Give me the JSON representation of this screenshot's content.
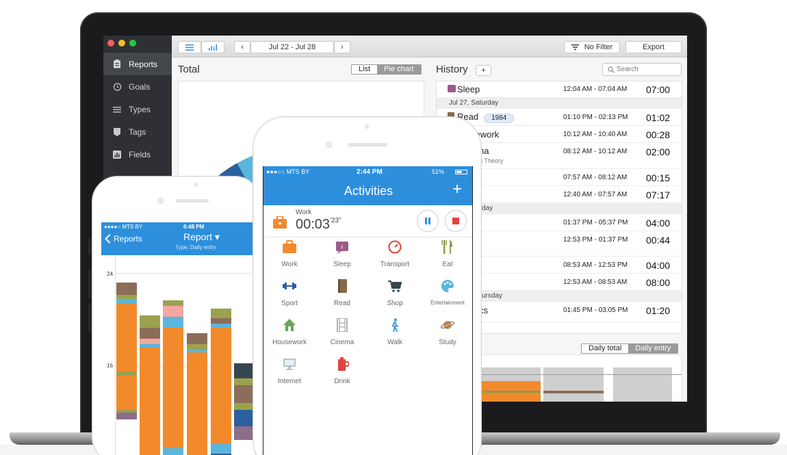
{
  "desktop": {
    "sidebar": {
      "items": [
        {
          "label": "Reports",
          "icon": "clipboard-icon"
        },
        {
          "label": "Goals",
          "icon": "alarm-clock-icon"
        },
        {
          "label": "Types",
          "icon": "list-icon"
        },
        {
          "label": "Tags",
          "icon": "tag-icon"
        },
        {
          "label": "Fields",
          "icon": "bar-chart-icon"
        }
      ],
      "active": "Reports"
    },
    "toolbar": {
      "date_range": "Jul 22 - Jul 28",
      "filter_label": "No Filter",
      "export_label": "Export"
    },
    "total": {
      "title": "Total",
      "view_list": "List",
      "view_pie": "Pie chart"
    },
    "history": {
      "title": "History",
      "add_label": "+",
      "search_placeholder": "Search",
      "rows": [
        {
          "kind": "entry",
          "name": "Sleep",
          "range": "12:04 AM - 07:04 AM",
          "duration": "07:00",
          "color": "#9b5a8a"
        },
        {
          "kind": "date",
          "label": "Jul 27, Saturday"
        },
        {
          "kind": "entry",
          "name": "Read",
          "badge": "1984",
          "range": "01:10 PM - 02:13 PM",
          "duration": "01:02",
          "color": "#8a6a4a"
        },
        {
          "kind": "entry",
          "name": "sework",
          "range": "10:12 AM - 10:40 AM",
          "duration": "00:28"
        },
        {
          "kind": "entry",
          "name": "na",
          "sub": "g Theory",
          "range": "08:12 AM - 10:12 AM",
          "duration": "02:00"
        },
        {
          "kind": "entry",
          "name": "",
          "range": "07:57 AM - 08:12 AM",
          "duration": "00:15"
        },
        {
          "kind": "entry",
          "name": "",
          "range": "12:40 AM - 07:57 AM",
          "duration": "07:17"
        },
        {
          "kind": "date",
          "label": "day"
        },
        {
          "kind": "entry",
          "name": "",
          "range": "01:37 PM - 05:37 PM",
          "duration": "04:00"
        },
        {
          "kind": "entry",
          "name": "",
          "range": "12:53 PM - 01:37 PM",
          "duration": "00:44"
        },
        {
          "kind": "entry",
          "name": "",
          "range": "08:53 AM - 12:53 PM",
          "duration": "04:00"
        },
        {
          "kind": "entry",
          "name": "",
          "range": "12:53 AM - 08:53 AM",
          "duration": "08:00"
        },
        {
          "kind": "date",
          "label": "ursday"
        },
        {
          "kind": "entry",
          "name": "cs",
          "range": "01:45 PM - 03:05 PM",
          "duration": "01:20"
        }
      ]
    },
    "bottom": {
      "daily_total": "Daily total",
      "daily_entry": "Daily entry"
    },
    "pie_colors": [
      "#f28a2c",
      "#8c9d4f",
      "#2c5f9e",
      "#5ab6dc",
      "#6d8f9e",
      "#2e2e2e",
      "#b4c2c8",
      "#f0d98c",
      "#8c6d8a",
      "#d6c9c2"
    ]
  },
  "phone_left": {
    "status": {
      "carrier": "●●●●○ MTS BY",
      "time": "6:48 PM"
    },
    "back_label": "Reports",
    "title": "Report ▾",
    "subtitle": "Type: Daily entry",
    "y_ticks": [
      "24",
      "16"
    ],
    "colors": {
      "work": "#f28a2c",
      "sleep": "#8c6d5a",
      "read": "#9aa24e",
      "walk": "#5ab6dc",
      "pink": "#f4a6a0",
      "navy": "#2c5f9e",
      "dark": "#37474f",
      "mauve": "#8c6d8a"
    }
  },
  "phone_center": {
    "status": {
      "carrier": "●●●○○ MTS BY",
      "time": "2:44 PM",
      "battery": "51%"
    },
    "title": "Activities",
    "add_label": "+",
    "current": {
      "label": "Work",
      "time_main": "00:03",
      "time_sec": "'23\""
    },
    "activities": [
      {
        "label": "Work",
        "icon": "briefcase-icon",
        "color": "#f28a2c"
      },
      {
        "label": "Sleep",
        "icon": "sleep-icon",
        "color": "#9b5a8a"
      },
      {
        "label": "Transport",
        "icon": "speedometer-icon",
        "color": "#e0443e"
      },
      {
        "label": "Eat",
        "icon": "fork-knife-icon",
        "color": "#8c9d4f"
      },
      {
        "label": "Sport",
        "icon": "dumbbell-icon",
        "color": "#2c5f9e"
      },
      {
        "label": "Read",
        "icon": "book-icon",
        "color": "#8a6a4a"
      },
      {
        "label": "Shop",
        "icon": "cart-icon",
        "color": "#37474f"
      },
      {
        "label": "Entertainment",
        "icon": "palette-icon",
        "color": "#5ab6dc"
      },
      {
        "label": "Housework",
        "icon": "house-icon",
        "color": "#6aa45a"
      },
      {
        "label": "Cinema",
        "icon": "film-icon",
        "color": "#9a9a9a"
      },
      {
        "label": "Walk",
        "icon": "walker-icon",
        "color": "#3aa0d8"
      },
      {
        "label": "Study",
        "icon": "planet-icon",
        "color": "#c49a6c"
      },
      {
        "label": "Internet",
        "icon": "monitor-icon",
        "color": "#b4c2c8"
      },
      {
        "label": "Drink",
        "icon": "cup-icon",
        "color": "#e0443e"
      }
    ]
  }
}
